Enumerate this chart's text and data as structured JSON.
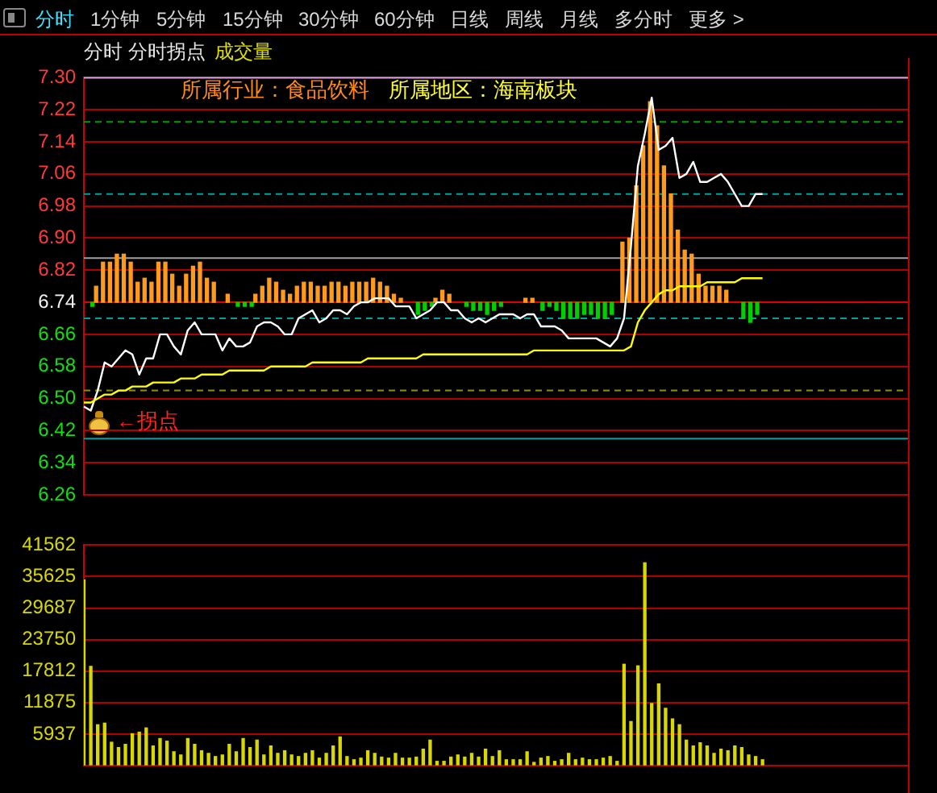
{
  "chart_data": [
    {
      "type": "other",
      "annotations": [
        "分时",
        "1分钟",
        "5分钟",
        "15分钟",
        "30分钟",
        "60分钟",
        "日线",
        "周线",
        "月线",
        "多分时",
        "更多 >"
      ]
    },
    {
      "type": "line",
      "title": "分时 分时拐点",
      "subtitle": "成交量",
      "categories": [
        null,
        null,
        null,
        null,
        null,
        null,
        null,
        null,
        null,
        null,
        null,
        null,
        null,
        null,
        null,
        null,
        null,
        null,
        null,
        null,
        null,
        null,
        null,
        null,
        null,
        null,
        null,
        null,
        null,
        null,
        null,
        null,
        null,
        null,
        null,
        null,
        null,
        null,
        null,
        null,
        null,
        null,
        null,
        null,
        null,
        null,
        null,
        null,
        null,
        null,
        null,
        null,
        null,
        null,
        null,
        null,
        null,
        null,
        null,
        null,
        null,
        null,
        null,
        null,
        null,
        null,
        null,
        null,
        null,
        null,
        null,
        null,
        null,
        null,
        null,
        null,
        null,
        null,
        null,
        null,
        null,
        null,
        null,
        null,
        null,
        null,
        null,
        null,
        null,
        null,
        null,
        null,
        null,
        null,
        null,
        null,
        null,
        null,
        null,
        null,
        null,
        null,
        null,
        null,
        null,
        null,
        null,
        null,
        null,
        null,
        null,
        null,
        null,
        null,
        null,
        null,
        null,
        null,
        null,
        null
      ],
      "series": [
        {
          "type": "bar",
          "color": "#ff9a1a",
          "values": [
            null,
            null,
            0.04,
            0.1,
            0.1,
            0.12,
            0.12,
            0.1,
            0.05,
            0.06,
            0.05,
            0.1,
            0.1,
            0.07,
            0.04,
            0.07,
            0.09,
            0.1,
            0.06,
            0.05,
            null,
            0.02,
            null,
            null,
            null,
            0.02,
            0.04,
            0.06,
            0.05,
            0.03,
            0.02,
            0.04,
            0.05,
            0.05,
            0.04,
            0.04,
            0.05,
            0.05,
            0.04,
            0.05,
            0.05,
            0.05,
            0.06,
            0.05,
            0.04,
            0.02,
            0.01,
            null,
            null,
            null,
            null,
            0.01,
            0.03,
            0.02,
            null,
            null,
            null,
            null,
            null,
            null,
            null,
            null,
            null,
            null,
            0.01,
            0.01,
            null,
            null,
            null,
            null,
            null,
            null,
            null,
            null,
            null,
            null,
            null,
            null,
            0.15,
            0.16,
            0.29,
            0.39,
            0.5,
            0.44,
            0.34,
            0.27,
            0.18,
            0.13,
            0.12,
            0.07,
            0.04,
            0.04,
            0.04,
            0.03,
            null,
            null,
            null,
            null,
            null,
            null,
            null,
            null,
            null,
            null,
            null,
            null,
            null,
            null,
            null,
            null,
            null,
            null,
            null,
            null,
            null,
            null,
            null,
            null,
            null,
            null
          ],
          "base": [
            null,
            null,
            6.74,
            6.74,
            6.74,
            6.74,
            6.74,
            6.74,
            6.74,
            6.74,
            6.74,
            6.74,
            6.74,
            6.74,
            6.74,
            6.74,
            6.74,
            6.74,
            6.74,
            6.74,
            null,
            6.74,
            null,
            null,
            null,
            6.74,
            6.74,
            6.74,
            6.74,
            6.74,
            6.74,
            6.74,
            6.74,
            6.74,
            6.74,
            6.74,
            6.74,
            6.74,
            6.74,
            6.74,
            6.74,
            6.74,
            6.74,
            6.74,
            6.74,
            6.74,
            6.74,
            null,
            null,
            null,
            null,
            6.74,
            6.74,
            6.74,
            null,
            null,
            null,
            null,
            null,
            null,
            null,
            null,
            null,
            null,
            6.74,
            6.74,
            null,
            null,
            null,
            null,
            null,
            null,
            null,
            null,
            null,
            null,
            null,
            null,
            6.74,
            6.74,
            6.74,
            6.74,
            6.74,
            6.74,
            6.74,
            6.74,
            6.74,
            6.74,
            6.74,
            6.74,
            6.74,
            6.74,
            6.74,
            6.74,
            null,
            null,
            null,
            null,
            null,
            null,
            null,
            null,
            null,
            null,
            null,
            null,
            null,
            null,
            null,
            null,
            null,
            null,
            null,
            null,
            null,
            null,
            null,
            null,
            null,
            null
          ]
        },
        {
          "type": "bar",
          "color": "#00d000",
          "values": [
            null,
            -0.01,
            null,
            null,
            null,
            null,
            null,
            null,
            null,
            null,
            null,
            null,
            null,
            null,
            null,
            null,
            null,
            null,
            null,
            null,
            null,
            null,
            -0.01,
            -0.01,
            -0.01,
            null,
            null,
            null,
            null,
            null,
            null,
            null,
            null,
            null,
            null,
            null,
            null,
            null,
            null,
            null,
            null,
            null,
            null,
            null,
            null,
            null,
            null,
            null,
            -0.03,
            -0.02,
            -0.01,
            null,
            null,
            null,
            null,
            -0.01,
            -0.02,
            -0.02,
            -0.03,
            -0.02,
            -0.01,
            null,
            null,
            null,
            null,
            null,
            -0.02,
            -0.01,
            -0.02,
            -0.04,
            -0.04,
            -0.04,
            -0.03,
            -0.03,
            -0.04,
            -0.04,
            -0.03,
            null,
            null,
            null,
            null,
            null,
            null,
            null,
            null,
            null,
            null,
            null,
            null,
            null,
            null,
            null,
            null,
            null,
            null,
            -0.04,
            -0.05,
            -0.03,
            null,
            null,
            null,
            null,
            null,
            null,
            null,
            null,
            null,
            null,
            null,
            null,
            null,
            null,
            null,
            null,
            null,
            null,
            null,
            null,
            null,
            null
          ],
          "base": [
            null,
            6.74,
            null,
            null,
            null,
            null,
            null,
            null,
            null,
            null,
            null,
            null,
            null,
            null,
            null,
            null,
            null,
            null,
            null,
            null,
            null,
            null,
            6.74,
            6.74,
            6.74,
            null,
            null,
            null,
            null,
            null,
            null,
            null,
            null,
            null,
            null,
            null,
            null,
            null,
            null,
            null,
            null,
            null,
            null,
            null,
            null,
            null,
            null,
            null,
            6.74,
            6.74,
            6.74,
            null,
            null,
            null,
            null,
            6.74,
            6.74,
            6.74,
            6.74,
            6.74,
            6.74,
            null,
            null,
            null,
            null,
            null,
            6.74,
            6.74,
            6.74,
            6.74,
            6.74,
            6.74,
            6.74,
            6.74,
            6.74,
            6.74,
            6.74,
            null,
            null,
            null,
            null,
            null,
            null,
            null,
            null,
            null,
            null,
            null,
            null,
            null,
            null,
            null,
            null,
            null,
            null,
            6.74,
            6.74,
            6.74,
            null,
            null,
            null,
            null,
            null,
            null,
            null,
            null,
            null,
            null,
            null,
            null,
            null,
            null,
            null,
            null,
            null,
            null,
            null,
            null,
            null,
            null
          ]
        },
        {
          "type": "line",
          "color": "#ffff00",
          "values": [
            6.49,
            6.49,
            6.5,
            6.51,
            6.51,
            6.52,
            6.52,
            6.53,
            6.53,
            6.53,
            6.54,
            6.54,
            6.54,
            6.54,
            6.55,
            6.55,
            6.55,
            6.56,
            6.56,
            6.56,
            6.56,
            6.57,
            6.57,
            6.57,
            6.57,
            6.57,
            6.57,
            6.58,
            6.58,
            6.58,
            6.58,
            6.58,
            6.58,
            6.59,
            6.59,
            6.59,
            6.59,
            6.59,
            6.59,
            6.59,
            6.59,
            6.6,
            6.6,
            6.6,
            6.6,
            6.6,
            6.6,
            6.6,
            6.6,
            6.61,
            6.61,
            6.61,
            6.61,
            6.61,
            6.61,
            6.61,
            6.61,
            6.61,
            6.61,
            6.61,
            6.61,
            6.61,
            6.61,
            6.61,
            6.61,
            6.62,
            6.62,
            6.62,
            6.62,
            6.62,
            6.62,
            6.62,
            6.62,
            6.62,
            6.62,
            6.62,
            6.62,
            6.62,
            6.62,
            6.63,
            6.69,
            6.72,
            6.74,
            6.76,
            6.77,
            6.77,
            6.78,
            6.78,
            6.78,
            6.78,
            6.79,
            6.79,
            6.79,
            6.79,
            6.79,
            6.8,
            6.8,
            6.8,
            6.8,
            null,
            null,
            null,
            null,
            null,
            null,
            null,
            null,
            null,
            null,
            null,
            null,
            null,
            null,
            null,
            null,
            null,
            null,
            null,
            null,
            null
          ]
        },
        {
          "type": "line",
          "color": "#ffffff",
          "values": [
            6.48,
            6.47,
            6.52,
            6.59,
            6.58,
            6.6,
            6.62,
            6.61,
            6.56,
            6.6,
            6.6,
            6.66,
            6.66,
            6.63,
            6.61,
            6.67,
            6.69,
            6.66,
            6.66,
            6.66,
            6.62,
            6.65,
            6.63,
            6.63,
            6.64,
            6.68,
            6.69,
            6.69,
            6.68,
            6.66,
            6.66,
            6.7,
            6.71,
            6.72,
            6.69,
            6.7,
            6.72,
            6.72,
            6.71,
            6.73,
            6.74,
            6.74,
            6.75,
            6.75,
            6.75,
            6.73,
            6.73,
            6.73,
            6.7,
            6.71,
            6.72,
            6.74,
            6.74,
            6.72,
            6.72,
            6.7,
            6.69,
            6.7,
            6.69,
            6.7,
            6.71,
            6.71,
            6.71,
            6.7,
            6.71,
            6.71,
            6.68,
            6.68,
            6.68,
            6.67,
            6.65,
            6.65,
            6.65,
            6.65,
            6.65,
            6.64,
            6.63,
            6.65,
            6.7,
            6.88,
            7.08,
            7.16,
            7.25,
            7.12,
            7.13,
            7.15,
            7.05,
            7.06,
            7.09,
            7.04,
            7.04,
            7.05,
            7.06,
            7.04,
            7.01,
            6.98,
            6.98,
            7.01,
            7.01,
            null,
            null,
            null,
            null,
            null,
            null,
            null,
            null,
            null,
            null,
            null,
            null,
            null,
            null,
            null,
            null,
            null,
            null,
            null,
            null,
            null
          ]
        }
      ],
      "ylim": [
        6.26,
        7.3
      ],
      "yticks": [
        6.26,
        6.34,
        6.42,
        {
          "value": 6.5,
          "label": "6.50"
        },
        6.58,
        6.66,
        6.74,
        6.82,
        {
          "value": 6.9,
          "label": "6.90"
        },
        6.98,
        7.06,
        7.14,
        7.22,
        {
          "value": 7.3,
          "label": "7.30"
        }
      ],
      "grid": "y",
      "marker": "none",
      "tick_labels": "y",
      "ref_lines": [
        {
          "axis": "y",
          "value": 6.74,
          "color": "#e00000"
        },
        {
          "axis": "y",
          "value": 7.3,
          "color": "#e0a0e0"
        },
        {
          "axis": "y",
          "value": 7.19,
          "color": "#00a000",
          "line_style": "dashed"
        },
        {
          "axis": "y",
          "value": 7.01,
          "color": "#00a0a0",
          "line_style": "dashed"
        },
        {
          "axis": "y",
          "value": 6.85,
          "color": "#a0a0a0"
        },
        {
          "axis": "y",
          "value": 6.7,
          "color": "#00a0a0",
          "line_style": "dashed"
        },
        {
          "axis": "y",
          "value": 6.52,
          "color": "#909000",
          "line_style": "dashed"
        },
        {
          "axis": "y",
          "value": 6.4,
          "color": "#00a0a0"
        }
      ],
      "annotations": [
        "所属行业：食品饮料",
        "所属地区：海南板块",
        "←拐点"
      ]
    },
    {
      "type": "bar",
      "categories": [
        null,
        null,
        null,
        null,
        null,
        null,
        null,
        null,
        null,
        null,
        null,
        null,
        null,
        null,
        null,
        null,
        null,
        null,
        null,
        null,
        null,
        null,
        null,
        null,
        null,
        null,
        null,
        null,
        null,
        null,
        null,
        null,
        null,
        null,
        null,
        null,
        null,
        null,
        null,
        null,
        null,
        null,
        null,
        null,
        null,
        null,
        null,
        null,
        null,
        null,
        null,
        null,
        null,
        null,
        null,
        null,
        null,
        null,
        null,
        null,
        null,
        null,
        null,
        null,
        null,
        null,
        null,
        null,
        null,
        null,
        null,
        null,
        null,
        null,
        null,
        null,
        null,
        null,
        null,
        null,
        null,
        null,
        null,
        null,
        null,
        null,
        null,
        null,
        null,
        null,
        null,
        null,
        null,
        null,
        null,
        null,
        null,
        null,
        null,
        null,
        null,
        null,
        null,
        null,
        null,
        null,
        null,
        null,
        null,
        null,
        null,
        null,
        null,
        null,
        null,
        null,
        null,
        null,
        null,
        null
      ],
      "series": [
        {
          "color": "#d8d800",
          "values": [
            35000,
            18700,
            7700,
            8000,
            4400,
            3400,
            4000,
            6000,
            6300,
            7100,
            3700,
            5100,
            4600,
            2600,
            2000,
            5100,
            4000,
            2800,
            2300,
            1700,
            2000,
            4000,
            2600,
            5100,
            3400,
            4800,
            2000,
            3700,
            2300,
            2800,
            2000,
            1700,
            2300,
            2800,
            1400,
            2300,
            3700,
            5400,
            1700,
            1100,
            1400,
            2800,
            2300,
            1600,
            1400,
            2300,
            1400,
            1400,
            1600,
            3100,
            4800,
            800,
            800,
            1600,
            2000,
            1600,
            2300,
            1600,
            3100,
            1700,
            2800,
            1100,
            1100,
            1100,
            2600,
            600,
            1400,
            1700,
            800,
            1100,
            2300,
            1100,
            1400,
            1100,
            1100,
            1400,
            1700,
            800,
            19100,
            8300,
            18800,
            38200,
            11700,
            15400,
            10800,
            8800,
            7700,
            4800,
            3700,
            4300,
            3700,
            2300,
            3100,
            2800,
            3700,
            3400,
            2000,
            1700,
            1100,
            null,
            null,
            null,
            null,
            null,
            null,
            null,
            null,
            null,
            null,
            null,
            null,
            null,
            null,
            null,
            null,
            null,
            null,
            null,
            null,
            null
          ]
        }
      ],
      "ylim": [
        0,
        41562
      ],
      "yticks": [
        {
          "value": 0,
          "label": null
        },
        5937,
        11875,
        17812,
        23750,
        29687,
        35625,
        41562
      ],
      "grid": "y",
      "tick_labels": "y"
    }
  ]
}
